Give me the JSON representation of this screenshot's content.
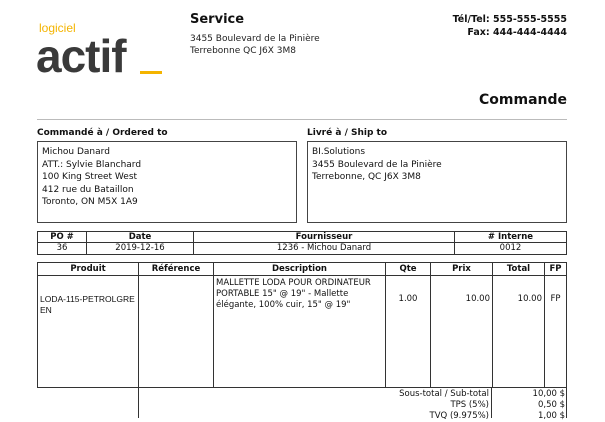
{
  "logo": {
    "small": "logiciel",
    "big": "actif",
    "accent": "#f4b400"
  },
  "company": {
    "name": "Service",
    "address1": "3455 Boulevard de la Pinière",
    "address2": "Terrebonne QC J6X 3M8",
    "tel": "Tél/Tel: 555-555-5555",
    "fax": "Fax: 444-444-4444"
  },
  "doc_title": "Commande",
  "ordered_to": {
    "label": "Commandé à / Ordered to",
    "lines": [
      "Michou Danard",
      "ATT.: Sylvie Blanchard",
      "100 King Street West",
      "412 rue du Bataillon",
      "Toronto, ON M5X 1A9"
    ]
  },
  "ship_to": {
    "label": "Livré à / Ship to",
    "lines": [
      "BI.Solutions",
      "3455 Boulevard de la Pinière",
      "Terrebonne, QC J6X 3M8"
    ]
  },
  "po": {
    "headers": [
      "PO #",
      "Date",
      "Fournisseur",
      "# Interne"
    ],
    "values": [
      "36",
      "2019-12-16",
      "1236 - Michou Danard",
      "0012"
    ]
  },
  "items": {
    "headers": [
      "Produit",
      "Référence",
      "Description",
      "Qte",
      "Prix",
      "Total",
      "FP"
    ],
    "rows": [
      [
        "LODA-115-PETROLGREEN",
        "",
        "MALLETTE LODA POUR ORDINATEUR PORTABLE 15\" @ 19\" - Mallette élégante, 100% cuir, 15\" @ 19\"",
        "1.00",
        "10.00",
        "10.00",
        "FP"
      ]
    ]
  },
  "totals": [
    {
      "label": "Sous-total / Sub-total",
      "value": "10,00 $"
    },
    {
      "label": "TPS (5%)",
      "value": "0,50 $"
    },
    {
      "label": "TVQ (9.975%)",
      "value": "1,00 $"
    }
  ]
}
